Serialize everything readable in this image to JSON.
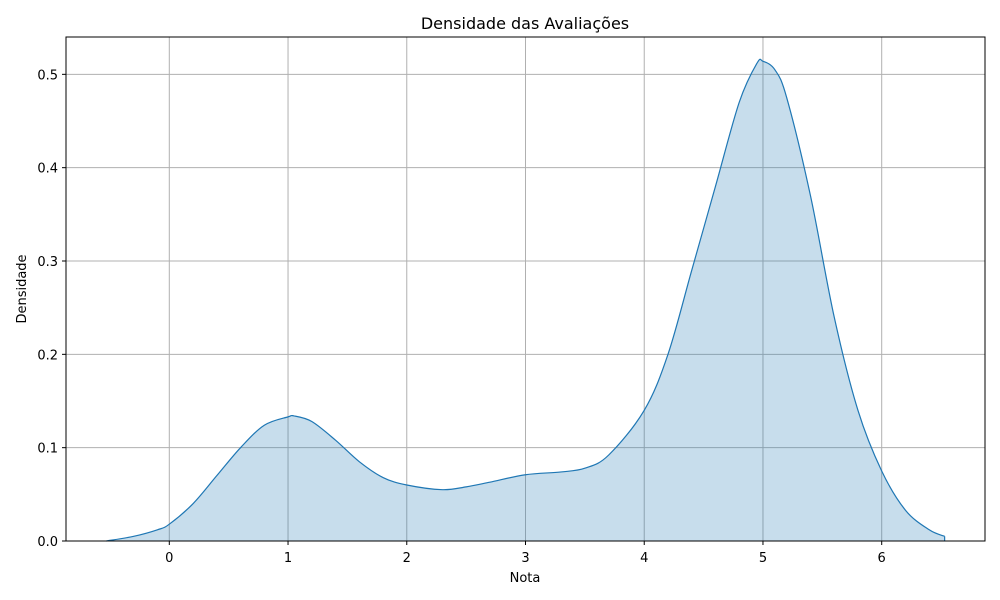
{
  "chart_data": {
    "type": "area",
    "title": "Densidade das Avaliações",
    "xlabel": "Nota",
    "ylabel": "Densidade",
    "xlim": [
      -0.87,
      6.87
    ],
    "ylim": [
      0,
      0.54
    ],
    "xticks": [
      0,
      1,
      2,
      3,
      4,
      5,
      6
    ],
    "yticks": [
      0.0,
      0.1,
      0.2,
      0.3,
      0.4,
      0.5
    ],
    "xtick_labels": [
      "0",
      "1",
      "2",
      "3",
      "4",
      "5",
      "6"
    ],
    "ytick_labels": [
      "0.0",
      "0.1",
      "0.2",
      "0.3",
      "0.4",
      "0.5"
    ],
    "grid": true,
    "series": [
      {
        "x": [
          -0.53,
          -0.3,
          -0.1,
          0.0,
          0.2,
          0.4,
          0.6,
          0.8,
          1.0,
          1.05,
          1.2,
          1.4,
          1.6,
          1.8,
          2.0,
          2.3,
          2.5,
          2.7,
          3.0,
          3.3,
          3.5,
          3.7,
          4.0,
          4.2,
          4.4,
          4.6,
          4.8,
          4.95,
          5.0,
          5.1,
          5.2,
          5.4,
          5.6,
          5.8,
          6.0,
          6.2,
          6.4,
          6.53
        ],
        "y": [
          0.0,
          0.005,
          0.012,
          0.018,
          0.04,
          0.07,
          0.1,
          0.124,
          0.133,
          0.134,
          0.128,
          0.108,
          0.085,
          0.068,
          0.06,
          0.055,
          0.058,
          0.063,
          0.071,
          0.074,
          0.078,
          0.092,
          0.14,
          0.2,
          0.29,
          0.38,
          0.47,
          0.512,
          0.514,
          0.505,
          0.475,
          0.37,
          0.24,
          0.14,
          0.075,
          0.033,
          0.012,
          0.005
        ]
      }
    ],
    "colors": {
      "line": "#1f77b4",
      "fill": "#1f77b4",
      "fill_opacity": 0.25,
      "grid": "#b0b0b0"
    }
  }
}
